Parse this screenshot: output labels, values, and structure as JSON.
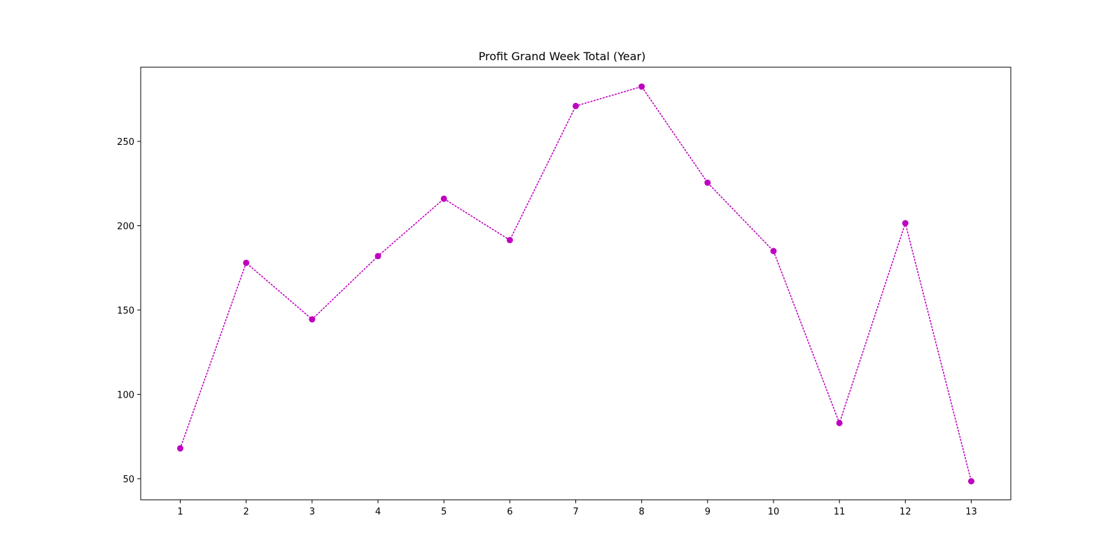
{
  "chart_data": {
    "type": "line",
    "title": "Profit Grand Week Total (Year)",
    "xlabel": "",
    "ylabel": "",
    "x": [
      1,
      2,
      3,
      4,
      5,
      6,
      7,
      8,
      9,
      10,
      11,
      12,
      13
    ],
    "series": [
      {
        "values": [
          68,
          178,
          144.5,
          182,
          216,
          191.5,
          271,
          282.5,
          225.5,
          185,
          83,
          201.5,
          48.5
        ],
        "color": "#bf00bf",
        "line_style": "dotted",
        "marker": "circle"
      }
    ],
    "xlim": [
      0.4,
      13.6
    ],
    "ylim": [
      37.5,
      294
    ],
    "xticks": [
      1,
      2,
      3,
      4,
      5,
      6,
      7,
      8,
      9,
      10,
      11,
      12,
      13
    ],
    "yticks": [
      50,
      100,
      150,
      200,
      250
    ],
    "grid": false,
    "legend": "none"
  }
}
